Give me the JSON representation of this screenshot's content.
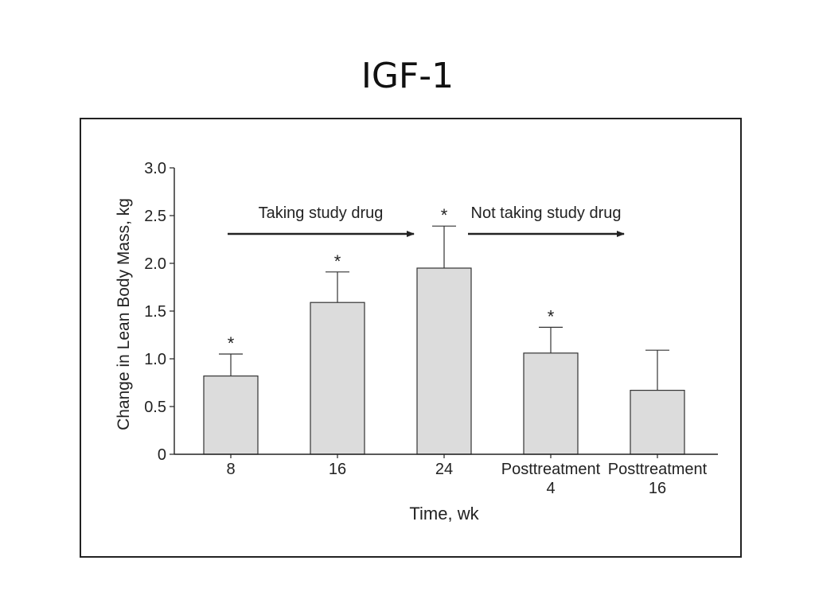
{
  "slide": {
    "title": "IGF-1"
  },
  "chart_data": {
    "type": "bar",
    "categories": [
      [
        "8"
      ],
      [
        "16"
      ],
      [
        "24"
      ],
      [
        "Posttreatment",
        "4"
      ],
      [
        "Posttreatment",
        "16"
      ]
    ],
    "values": [
      0.82,
      1.59,
      1.95,
      1.06,
      0.67
    ],
    "error_upper": [
      1.05,
      1.91,
      2.39,
      1.33,
      1.09
    ],
    "significance_marks": [
      "*",
      "*",
      "*",
      "*",
      ""
    ],
    "xlabel": "Time, wk",
    "ylabel": "Change in Lean Body Mass, kg",
    "ylim": [
      0,
      3.0
    ],
    "yticks": [
      {
        "value": 0,
        "label": "0"
      },
      {
        "value": 0.5,
        "label": "0.5"
      },
      {
        "value": 1.0,
        "label": "1.0"
      },
      {
        "value": 1.5,
        "label": "1.5"
      },
      {
        "value": 2.0,
        "label": "2.0"
      },
      {
        "value": 2.5,
        "label": "2.5"
      },
      {
        "value": 3.0,
        "label": "3.0"
      }
    ],
    "bar_color": "#dcdcdc",
    "bar_edge_color": "#333333",
    "annotations": [
      {
        "text": "Taking study drug",
        "from_category": 0,
        "to_category": 2
      },
      {
        "text": "Not taking study drug",
        "from_category": 2,
        "to_category": 4
      }
    ],
    "grid": false,
    "legend": "none"
  }
}
